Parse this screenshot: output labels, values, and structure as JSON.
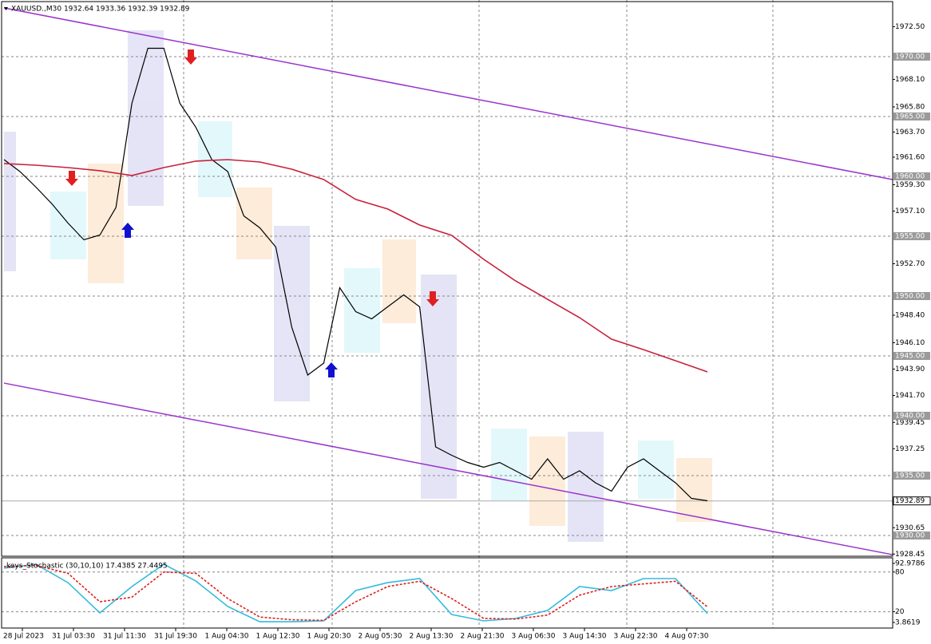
{
  "chart_data": [
    {
      "type": "line",
      "title": "XAUUSD.,M30  1932.64 1933.36 1932.39 1932.89",
      "x_tick_labels": [
        "28 Jul 2023",
        "31 Jul 03:30",
        "31 Jul 11:30",
        "31 Jul 19:30",
        "1 Aug 04:30",
        "1 Aug 12:30",
        "1 Aug 20:30",
        "2 Aug 05:30",
        "2 Aug 13:30",
        "2 Aug 21:30",
        "3 Aug 06:30",
        "3 Aug 14:30",
        "3 Aug 22:30",
        "4 Aug 07:30"
      ],
      "ylim": [
        1928.27,
        1974.73
      ],
      "yticks": [
        {
          "value": 1972.5,
          "label": "1972.50"
        },
        {
          "value": 1968.1,
          "label": "1968.10"
        },
        {
          "value": 1965.8,
          "label": "1965.80"
        },
        {
          "value": 1963.7,
          "label": "1963.70"
        },
        {
          "value": 1961.6,
          "label": "1961.60"
        },
        {
          "value": 1959.3,
          "label": "1959.30"
        },
        {
          "value": 1957.1,
          "label": "1957.10"
        },
        {
          "value": 1952.7,
          "label": "1952.70"
        },
        {
          "value": 1948.4,
          "label": "1948.40"
        },
        {
          "value": 1946.1,
          "label": "1946.10"
        },
        {
          "value": 1943.9,
          "label": "1943.90"
        },
        {
          "value": 1941.7,
          "label": "1941.70"
        },
        1939.45,
        1937.25,
        1930.65,
        1928.45
      ],
      "levels": [
        {
          "value": 1970,
          "label": "1970.00"
        },
        {
          "value": 1965,
          "label": "1965.00"
        },
        {
          "value": 1960,
          "label": "1960.00"
        },
        {
          "value": 1955,
          "label": "1955.00"
        },
        {
          "value": 1950,
          "label": "1950.00"
        },
        {
          "value": 1945,
          "label": "1945.00"
        },
        {
          "value": 1940,
          "label": "1940.00"
        },
        {
          "value": 1935,
          "label": "1935.00"
        },
        {
          "value": 1930,
          "label": "1930.00"
        }
      ],
      "current_price": 1932.89,
      "series": [
        {
          "color": "#000000",
          "values": [
            1961.4,
            1960.4,
            1959.1,
            1957.7,
            1956.1,
            1954.7,
            1955.1,
            1957.4,
            1966.1,
            1970.7,
            1970.7,
            1966.1,
            1964.1,
            1961.4,
            1960.4,
            1956.7,
            1955.7,
            1954.1,
            1947.4,
            1943.4,
            1944.4,
            1950.7,
            1948.7,
            1948.1,
            1949.1,
            1950.1,
            1949.1,
            1937.4,
            1936.7,
            1936.1,
            1935.7,
            1936.1,
            1935.4,
            1934.7,
            1936.4,
            1934.7,
            1935.4,
            1934.4,
            1933.7,
            1935.7,
            1936.4,
            1935.4,
            1934.4,
            1933.1,
            1932.9
          ]
        },
        {
          "color": "#c8203c",
          "values": [
            1961.07,
            1960.93,
            1960.73,
            1960.47,
            1960.07,
            1960.73,
            1961.27,
            1961.4,
            1961.2,
            1960.6,
            1959.73,
            1958.07,
            1957.27,
            1955.93,
            1955.07,
            1953.07,
            1951.27,
            1949.73,
            1948.2,
            1946.4,
            1945.53,
            1944.6,
            1943.67
          ]
        }
      ],
      "channel": [
        {
          "color": "#9933cc",
          "start": 1974.07,
          "end": 1959.73
        },
        {
          "color": "#9933cc",
          "start": 1942.73,
          "end": 1928.4
        }
      ]
    },
    {
      "type": "line",
      "title": "keys_Stochastic (30,10,10) 17.4385 27.4495",
      "ylim": [
        3.8619,
        92.9786
      ],
      "yticks": [
        92.9786,
        80,
        20,
        3.8619
      ],
      "levels": [
        80,
        20
      ],
      "series": [
        {
          "color": "#33bbdd",
          "values": [
            85.7,
            91.7,
            64.0,
            18.3,
            58.0,
            91.7,
            66.4,
            27.9,
            5.0,
            5.0,
            6.3,
            52.0,
            64.0,
            70.1,
            15.9,
            6.3,
            9.9,
            22.0,
            58.0,
            52.0,
            70.1,
            70.1,
            17.4
          ]
        },
        {
          "color": "#e02020",
          "dashed": true,
          "values": [
            88,
            90,
            78,
            35,
            42,
            80,
            78,
            40,
            12,
            8,
            7,
            35,
            58,
            66,
            40,
            10,
            9,
            15,
            45,
            58,
            62,
            66,
            27.4
          ]
        }
      ]
    }
  ]
}
